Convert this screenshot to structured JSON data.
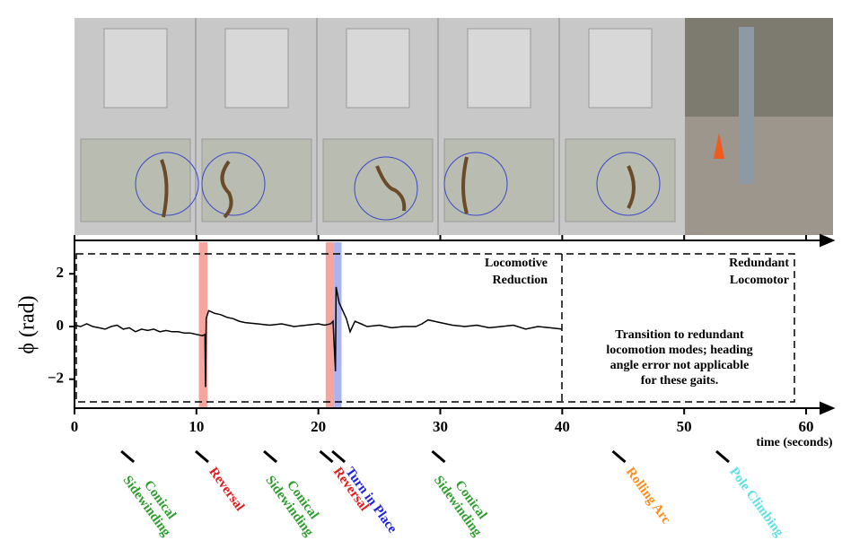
{
  "chart_data": {
    "type": "line",
    "ylabel": "ϕ  (rad)",
    "xlabel": "time (seconds)",
    "xlim": [
      0,
      60
    ],
    "ylim": [
      -3.1,
      3.2
    ],
    "xticks": [
      0,
      10,
      20,
      30,
      40,
      50,
      60
    ],
    "yticks": [
      {
        "value": -2,
        "label": "−2"
      },
      0,
      2
    ],
    "color": "#000000",
    "x": [
      0,
      0.5,
      1,
      1.5,
      2,
      2.5,
      3,
      3.5,
      4,
      4.5,
      5,
      5.5,
      6,
      6.5,
      7,
      7.5,
      8,
      8.5,
      9,
      9.5,
      10,
      10.5,
      10.7,
      10.75,
      10.8,
      11,
      11.5,
      12,
      12.5,
      13,
      13.5,
      14,
      15,
      16,
      17,
      18,
      19,
      20,
      20.5,
      21,
      21.2,
      21.4,
      21.45,
      21.5,
      21.7,
      22,
      22.3,
      22.6,
      23,
      23.5,
      24,
      25,
      26,
      27,
      28,
      28.5,
      29,
      29.5,
      30,
      31,
      32,
      33,
      34,
      35,
      36,
      37,
      38,
      39,
      40
    ],
    "values": [
      0.05,
      0,
      0.1,
      0,
      -0.05,
      -0.1,
      0,
      0.05,
      -0.1,
      -0.05,
      -0.2,
      -0.1,
      -0.15,
      -0.1,
      -0.2,
      -0.15,
      -0.2,
      -0.2,
      -0.25,
      -0.25,
      -0.3,
      -0.35,
      -0.3,
      -2.3,
      0.3,
      0.6,
      0.5,
      0.45,
      0.35,
      0.3,
      0.2,
      0.15,
      0.1,
      0.05,
      0.1,
      0,
      0.05,
      0.1,
      0.05,
      0.1,
      0.2,
      -1.7,
      1.5,
      1.4,
      0.9,
      0.6,
      0.3,
      -0.2,
      0.2,
      0.1,
      0,
      0.05,
      -0.05,
      0,
      0,
      0.1,
      0.25,
      0.2,
      0.15,
      0.05,
      0,
      0.05,
      -0.05,
      0,
      0.05,
      -0.1,
      0,
      -0.05,
      -0.1
    ],
    "bands": [
      {
        "start": 10.2,
        "end": 10.9,
        "color": "#f4a59e"
      },
      {
        "start": 20.6,
        "end": 21.3,
        "color": "#f4a59e"
      },
      {
        "start": 21.3,
        "end": 21.9,
        "color": "#a9b3f2"
      }
    ],
    "annotations": [
      {
        "lines": [
          "Locomotive",
          "Reduction"
        ]
      },
      {
        "lines": [
          "Redundant",
          "Locomotor"
        ]
      },
      {
        "lines": [
          "Transition to redundant",
          "locomotion modes; heading",
          "angle error not applicable",
          "for these gaits."
        ]
      }
    ],
    "gaits": [
      {
        "time": 4.5,
        "lines": [
          "Conical",
          "Sidewinding"
        ],
        "color": "#2e9e2e"
      },
      {
        "time": 10.6,
        "lines": [
          "Reversal"
        ],
        "color": "#e31a1c"
      },
      {
        "time": 16.2,
        "lines": [
          "Conical",
          "Sidewinding"
        ],
        "color": "#2e9e2e"
      },
      {
        "time": 20.8,
        "lines": [
          "Reversal"
        ],
        "color": "#e31a1c"
      },
      {
        "time": 21.8,
        "lines": [
          "Turn in Place"
        ],
        "color": "#2222dd"
      },
      {
        "time": 30,
        "lines": [
          "Conical",
          "Sidewinding"
        ],
        "color": "#2e9e2e"
      },
      {
        "time": 44.8,
        "lines": [
          "Rolling Arc"
        ],
        "color": "#ff8c1a"
      },
      {
        "time": 53.3,
        "lines": [
          "Pole Climbing"
        ],
        "color": "#5ce1e6"
      }
    ]
  }
}
